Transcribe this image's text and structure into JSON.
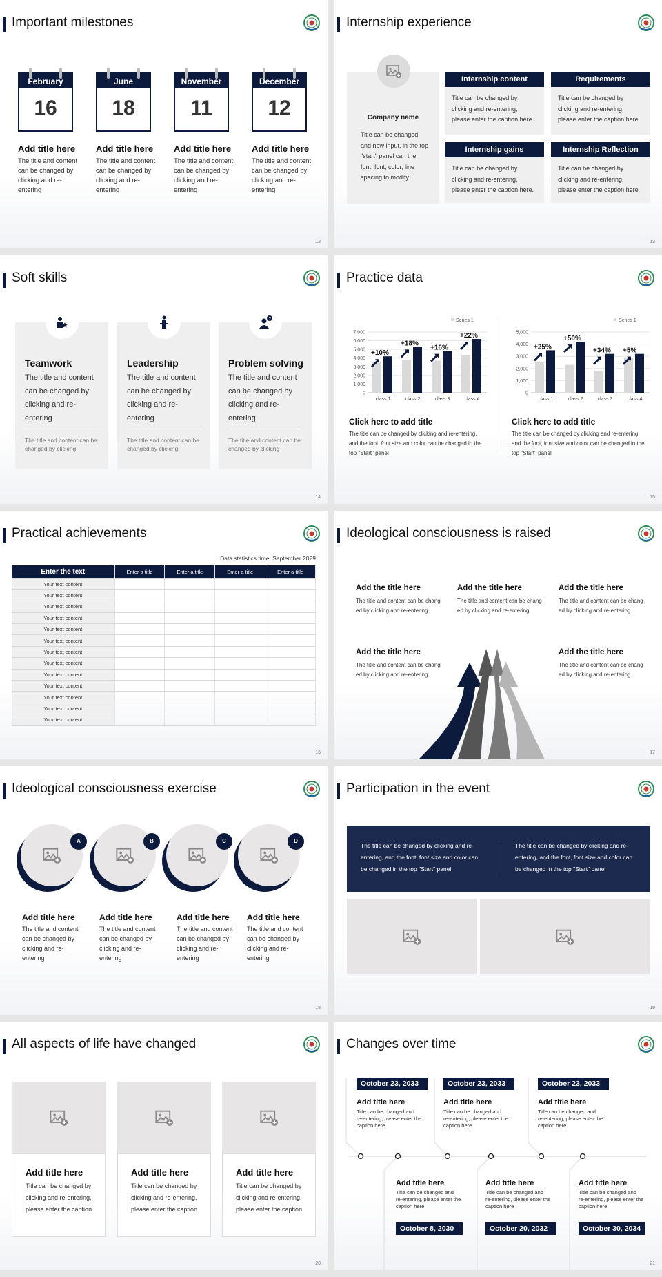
{
  "colors": {
    "navy": "#0c1a3d",
    "light_gray": "#efefef",
    "bar_light": "#d9d9d9"
  },
  "milestones": {
    "page": "12",
    "title": "Important milestones",
    "items": [
      {
        "month": "February",
        "day": "16",
        "title": "Add title here",
        "desc": "The title and content can be changed by clicking and re-entering"
      },
      {
        "month": "June",
        "day": "18",
        "title": "Add title here",
        "desc": "The title and content can be changed by clicking and re-entering"
      },
      {
        "month": "November",
        "day": "11",
        "title": "Add title here",
        "desc": "The title and content can be changed by clicking and re-entering"
      },
      {
        "month": "December",
        "day": "12",
        "title": "Add title here",
        "desc": "The title and content can be changed by clicking and re-entering"
      }
    ]
  },
  "internship": {
    "page": "13",
    "title": "Internship experience",
    "company": "Company name",
    "company_desc": "Title can be changed and new input, in the top \"start\" panel can the font, font, color, line spacing to modify",
    "boxes": [
      {
        "header": "Internship content",
        "body": "Title can be changed by clicking and re-entering, please enter the caption here."
      },
      {
        "header": "Requirements",
        "body": "Title can be changed by clicking and re-entering, please enter the caption here."
      },
      {
        "header": "Internship gains",
        "body": "Title can be changed by clicking and re-entering, please enter the caption here."
      },
      {
        "header": "Internship Reflection",
        "body": "Title can be changed by clicking and re-entering, please enter the caption here."
      }
    ]
  },
  "soft_skills": {
    "page": "14",
    "title": "Soft skills",
    "cards": [
      {
        "icon": "team-icon",
        "title": "Teamwork",
        "desc": "The title and content can be changed by clicking and re-entering",
        "note": "The title and content can be changed by clicking"
      },
      {
        "icon": "podium-speaker-icon",
        "title": "Leadership",
        "desc": "The title and content can be changed by clicking and re-entering",
        "note": "The title and content can be changed by clicking"
      },
      {
        "icon": "person-question-icon",
        "title": "Problem solving",
        "desc": "The title and content can be changed by clicking and re-entering",
        "note": "The title and content can be changed by clicking"
      }
    ]
  },
  "practice_data": {
    "page": "15",
    "title": "Practice data",
    "captions": [
      {
        "title": "Click here to add title",
        "desc": "The title can be changed by clicking and re-entering, and the font, font size and color can be changed in the top \"Start\" panel"
      },
      {
        "title": "Click here to add title",
        "desc": "The title can be changed by clicking and re-entering, and the font, font size and color can be changed in the top \"Start\" panel"
      }
    ]
  },
  "chart_data": [
    {
      "type": "bar",
      "categories": [
        "class 1",
        "class 2",
        "class 3",
        "class 4"
      ],
      "ylim": [
        0,
        7000
      ],
      "yticks": [
        "0",
        "1,000",
        "2,000",
        "3,000",
        "4,000",
        "5,000",
        "6,000",
        "7,000"
      ],
      "legend": "top-right",
      "grid": true,
      "series": [
        {
          "name": "Series 1",
          "values": [
            3500,
            3800,
            3700,
            4300
          ],
          "color": "#d9d9d9"
        },
        {
          "values": [
            4200,
            5300,
            4800,
            6200
          ],
          "color": "#0c1a3d"
        }
      ],
      "annotations": [
        "+10%",
        "+18%",
        "+16%",
        "+22%"
      ]
    },
    {
      "type": "bar",
      "categories": [
        "class 1",
        "class 2",
        "class 3",
        "class 4"
      ],
      "ylim": [
        0,
        5000
      ],
      "yticks": [
        "0",
        "1,000",
        "2,000",
        "3,000",
        "4,000",
        "5,000"
      ],
      "legend": "top-right",
      "grid": true,
      "series": [
        {
          "name": "Series 1",
          "values": [
            2500,
            2300,
            1800,
            2900
          ],
          "color": "#d9d9d9"
        },
        {
          "values": [
            3500,
            4200,
            3200,
            3200
          ],
          "color": "#0c1a3d"
        }
      ],
      "annotations": [
        "+25%",
        "+50%",
        "+34%",
        "+5%"
      ]
    }
  ],
  "achievements": {
    "page": "16",
    "title": "Practical achievements",
    "stat_time": "Data statistics time: September 2029",
    "headers": [
      "Enter the text",
      "Enter a title",
      "Enter a title",
      "Enter a title",
      "Enter a title"
    ],
    "rows": [
      "Your text content",
      "Your text content",
      "Your text content",
      "Your text content",
      "Your text content",
      "Your text content",
      "Your text content",
      "Your text content",
      "Your text content",
      "Your text content",
      "Your text content",
      "Your text content",
      "Your text content"
    ]
  },
  "raised": {
    "page": "17",
    "title": "Ideological consciousness is raised",
    "items": [
      {
        "title": "Add the title here",
        "desc": "The title and content can be changed by clicking and re-entering"
      },
      {
        "title": "Add the title here",
        "desc": "The title and content can be changed by clicking and re-entering"
      },
      {
        "title": "Add the title here",
        "desc": "The title and content can be changed by clicking and re-entering"
      },
      {
        "title": "Add the title here",
        "desc": "The title and content can be changed by clicking and re-entering"
      },
      {
        "title": "Add the title here",
        "desc": "The title and content can be changed by clicking and re-entering"
      }
    ]
  },
  "exercise": {
    "page": "18",
    "title": "Ideological consciousness exercise",
    "items": [
      {
        "badge": "A",
        "title": "Add title here",
        "desc": "The title and content can be changed by clicking and re-entering"
      },
      {
        "badge": "B",
        "title": "Add title here",
        "desc": "The title and content can be changed by clicking and re-entering"
      },
      {
        "badge": "C",
        "title": "Add title here",
        "desc": "The title and content can be changed by clicking and re-entering"
      },
      {
        "badge": "D",
        "title": "Add title here",
        "desc": "The title and content can be changed by clicking and re-entering"
      }
    ]
  },
  "participation": {
    "page": "19",
    "title": "Participation in the event",
    "texts": [
      "The title can be changed by clicking and re-entering, and the font, font size and color can be changed in the top \"Start\" panel",
      "The title can be changed by clicking and re-entering, and the font, font size and color can be changed in the top \"Start\" panel"
    ]
  },
  "life": {
    "page": "20",
    "title": "All aspects of life have changed",
    "cards": [
      {
        "title": "Add title here",
        "desc": "Title can be changed by clicking and re-entering, please enter the caption"
      },
      {
        "title": "Add title here",
        "desc": "Title can be changed by clicking and re-entering, please enter the caption"
      },
      {
        "title": "Add title here",
        "desc": "Title can be changed by clicking and re-entering, please enter the caption"
      }
    ]
  },
  "changes": {
    "page": "21",
    "title": "Changes over time",
    "top": [
      {
        "date": "October 23, 2033",
        "title": "Add title here",
        "desc": "Title can be changed and re-entering, please enter the caption here"
      },
      {
        "date": "October 23, 2033",
        "title": "Add title here",
        "desc": "Title can be changed and re-entering, please enter the caption here"
      },
      {
        "date": "October 23, 2033",
        "title": "Add title here",
        "desc": "Title can be changed and re-entering, please enter the caption here"
      }
    ],
    "bottom": [
      {
        "date": "October 8, 2030",
        "title": "Add title here",
        "desc": "Title can be changed and re-entering, please enter the caption here"
      },
      {
        "date": "October 20, 2032",
        "title": "Add title here",
        "desc": "Title can be changed and re-entering, please enter the caption here"
      },
      {
        "date": "October 30, 2034",
        "title": "Add title here",
        "desc": "Title can be changed and re-entering, please enter the caption here"
      }
    ]
  }
}
